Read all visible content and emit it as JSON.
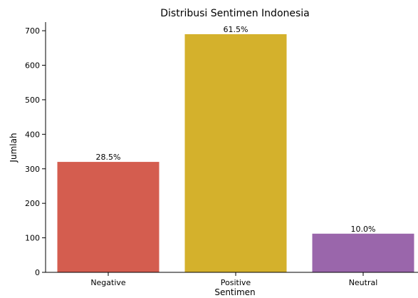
{
  "chart_data": {
    "type": "bar",
    "title": "Distribusi Sentimen Indonesia",
    "xlabel": "Sentimen",
    "ylabel": "Jumlah",
    "categories": [
      "Negative",
      "Positive",
      "Neutral"
    ],
    "values": [
      320,
      690,
      112
    ],
    "data_labels": [
      "28.5%",
      "61.5%",
      "10.0%"
    ],
    "colors": [
      "#d45d4f",
      "#d4b12c",
      "#9a66ab"
    ],
    "ylim": [
      0,
      725
    ],
    "yticks": [
      0,
      100,
      200,
      300,
      400,
      500,
      600,
      700
    ],
    "grid": false,
    "legend": "none"
  }
}
